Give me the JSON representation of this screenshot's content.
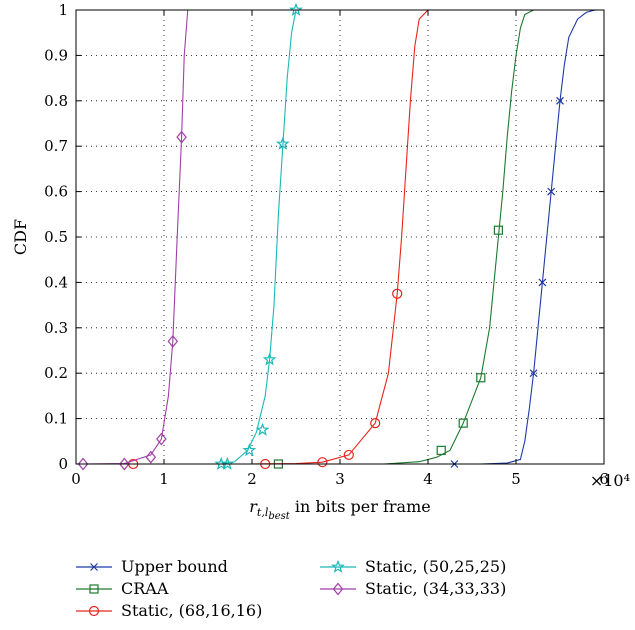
{
  "chart_data": {
    "type": "line",
    "title": "",
    "xlabel": {
      "main": "r",
      "sub1": "t,l",
      "sub2": "best",
      "suffix": " in bits per frame"
    },
    "ylabel": "CDF",
    "x_multiplier": "×10⁴",
    "xlim": [
      0,
      6
    ],
    "ylim": [
      0,
      1
    ],
    "xticks": [
      "0",
      "1",
      "2",
      "3",
      "4",
      "5",
      "6"
    ],
    "yticks": [
      "0",
      "0.1",
      "0.2",
      "0.3",
      "0.4",
      "0.5",
      "0.6",
      "0.7",
      "0.8",
      "0.9",
      "1"
    ],
    "grid": true,
    "legend_position": "bottom",
    "series": [
      {
        "name": "Upper bound",
        "color": "#1f3aa8",
        "marker": "x",
        "x": [
          4.3,
          4.6,
          4.9,
          5.05,
          5.1,
          5.15,
          5.2,
          5.25,
          5.3,
          5.35,
          5.4,
          5.45,
          5.5,
          5.55,
          5.6,
          5.7,
          5.8,
          5.9
        ],
        "y": [
          0,
          0,
          0.002,
          0.01,
          0.05,
          0.12,
          0.2,
          0.3,
          0.4,
          0.5,
          0.6,
          0.7,
          0.8,
          0.88,
          0.94,
          0.98,
          0.995,
          1
        ],
        "markers": [
          [
            4.3,
            0
          ],
          [
            5.2,
            0.2
          ],
          [
            5.3,
            0.4
          ],
          [
            5.4,
            0.6
          ],
          [
            5.5,
            0.8
          ]
        ]
      },
      {
        "name": "CRAA",
        "color": "#1d7a2f",
        "marker": "square",
        "x": [
          2.3,
          3.5,
          3.9,
          4.1,
          4.25,
          4.4,
          4.6,
          4.7,
          4.8,
          4.85,
          4.9,
          4.95,
          5.0,
          5.05,
          5.1,
          5.2
        ],
        "y": [
          0,
          0,
          0.005,
          0.015,
          0.03,
          0.09,
          0.19,
          0.3,
          0.5,
          0.6,
          0.72,
          0.82,
          0.9,
          0.96,
          0.99,
          1
        ],
        "markers": [
          [
            2.3,
            0
          ],
          [
            4.15,
            0.03
          ],
          [
            4.4,
            0.09
          ],
          [
            4.6,
            0.19
          ],
          [
            4.8,
            0.515
          ]
        ]
      },
      {
        "name": "Static, (68,16,16)",
        "color": "#e8241c",
        "marker": "circle",
        "x": [
          0.65,
          2.0,
          2.5,
          2.8,
          3.1,
          3.4,
          3.55,
          3.65,
          3.7,
          3.75,
          3.8,
          3.85,
          3.9,
          4.0
        ],
        "y": [
          0,
          0,
          0.001,
          0.004,
          0.02,
          0.09,
          0.2,
          0.375,
          0.5,
          0.65,
          0.8,
          0.92,
          0.98,
          1
        ],
        "markers": [
          [
            0.65,
            0
          ],
          [
            2.15,
            0
          ],
          [
            2.8,
            0.004
          ],
          [
            3.1,
            0.02
          ],
          [
            3.4,
            0.09
          ],
          [
            3.65,
            0.375
          ]
        ]
      },
      {
        "name": "Static, (50,25,25)",
        "color": "#1bb8b8",
        "marker": "star",
        "x": [
          1.65,
          1.8,
          1.95,
          2.05,
          2.15,
          2.2,
          2.25,
          2.3,
          2.35,
          2.4,
          2.45,
          2.5
        ],
        "y": [
          0,
          0.005,
          0.03,
          0.07,
          0.15,
          0.23,
          0.35,
          0.55,
          0.7,
          0.85,
          0.95,
          1
        ],
        "markers": [
          [
            1.65,
            0
          ],
          [
            1.72,
            0
          ],
          [
            1.97,
            0.03
          ],
          [
            2.12,
            0.075
          ],
          [
            2.2,
            0.23
          ],
          [
            2.35,
            0.705
          ],
          [
            2.5,
            1
          ]
        ]
      },
      {
        "name": "Static, (34,33,33)",
        "color": "#a13fa6",
        "marker": "diamond",
        "x": [
          0.08,
          0.55,
          0.85,
          0.97,
          1.05,
          1.1,
          1.15,
          1.2,
          1.23,
          1.27
        ],
        "y": [
          0,
          0.001,
          0.02,
          0.055,
          0.15,
          0.27,
          0.5,
          0.72,
          0.9,
          1
        ],
        "markers": [
          [
            0.08,
            0
          ],
          [
            0.55,
            0
          ],
          [
            0.85,
            0.015
          ],
          [
            0.97,
            0.055
          ],
          [
            1.1,
            0.27
          ],
          [
            1.2,
            0.72
          ]
        ]
      }
    ]
  }
}
